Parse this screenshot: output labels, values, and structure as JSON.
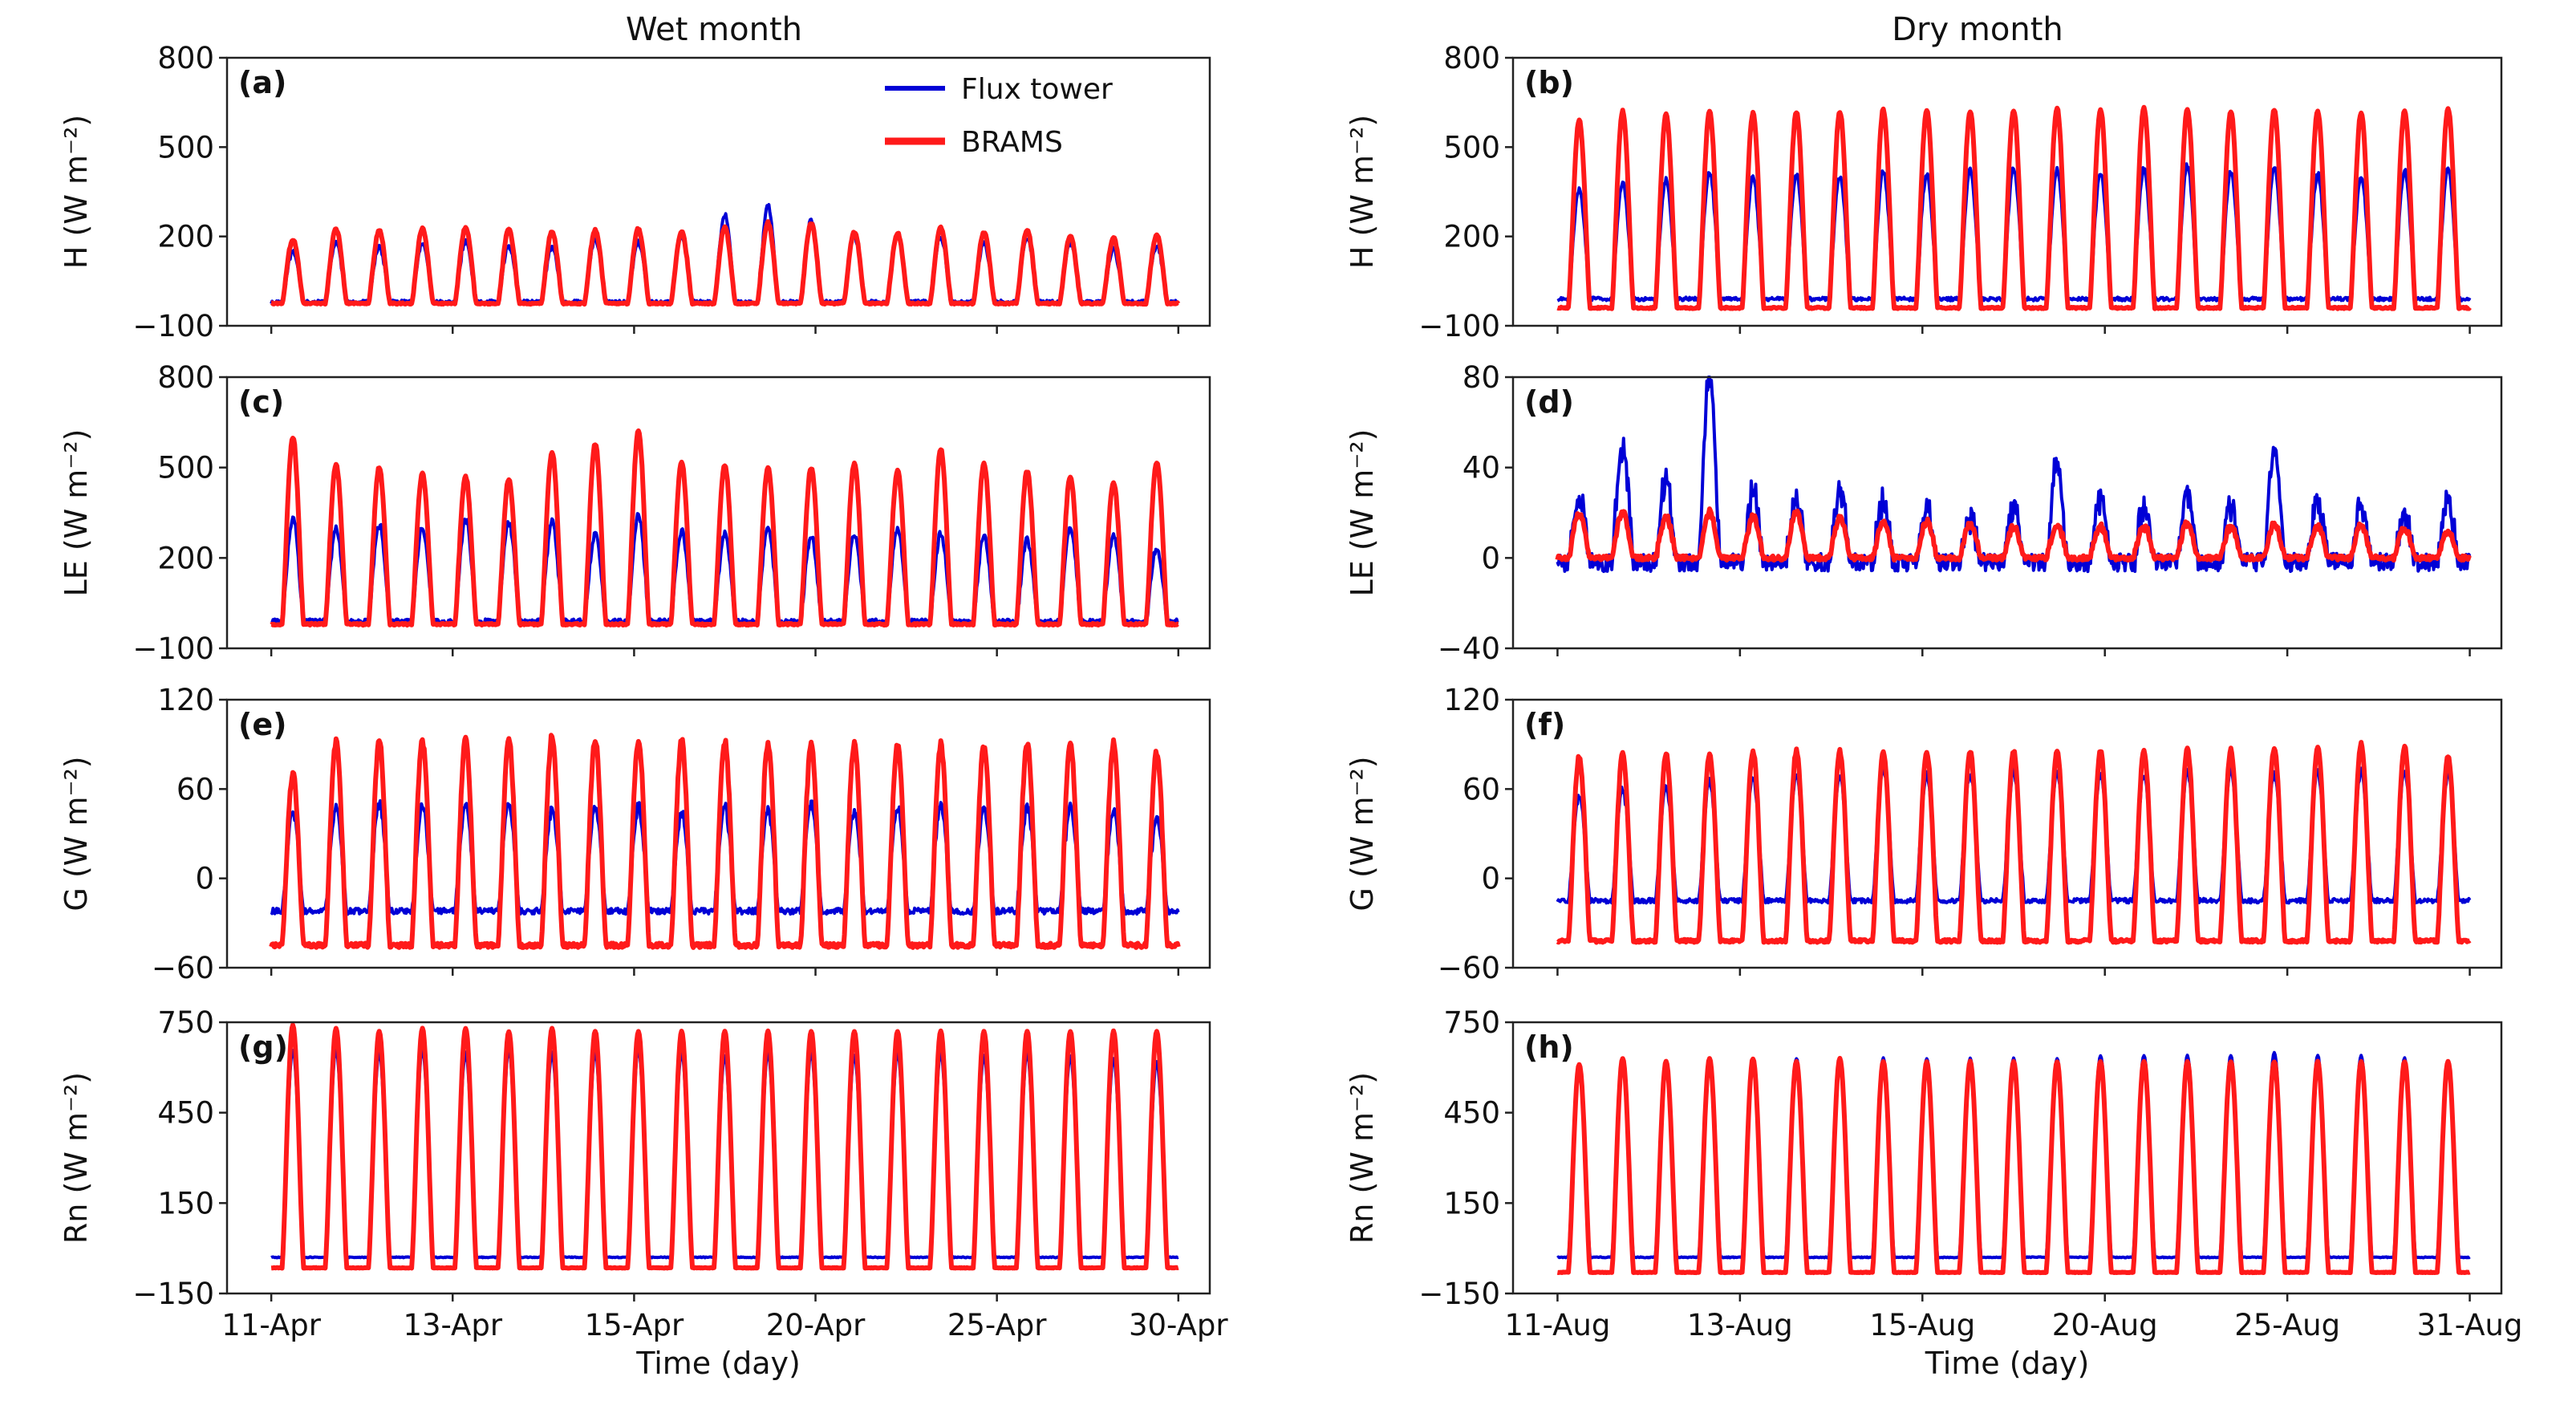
{
  "colors": {
    "flux_tower": "#0000d6",
    "brams": "#ff1a1a",
    "axes": "#222222"
  },
  "layout_titles": {
    "left": "Wet month",
    "right": "Dry month"
  },
  "legend": {
    "series": [
      "Flux tower",
      "BRAMS"
    ]
  },
  "chart_data": [
    {
      "id": "a",
      "type": "line",
      "panel_label": "(a)",
      "column": "Wet month",
      "ylabel": "H (W m⁻²)",
      "ylabel_base": "H",
      "ylim": [
        -100,
        800
      ],
      "yticks": [
        "800",
        "500",
        "200",
        "−100"
      ],
      "xticks": [
        "11-Apr",
        "13-Apr",
        "15-Apr",
        "20-Apr",
        "25-Apr",
        "30-Apr"
      ],
      "xlabel": "",
      "series": [
        {
          "name": "Flux tower",
          "n_days": 21,
          "day_peak": [
            150,
            180,
            165,
            180,
            185,
            170,
            165,
            190,
            180,
            200,
            270,
            300,
            260,
            200,
            210,
            200,
            175,
            195,
            180,
            160,
            170
          ],
          "night_base": -20,
          "night_noise": 12
        },
        {
          "name": "BRAMS",
          "n_days": 21,
          "day_peak": [
            190,
            225,
            220,
            225,
            230,
            225,
            215,
            220,
            225,
            215,
            230,
            245,
            245,
            215,
            210,
            230,
            215,
            220,
            200,
            195,
            205
          ],
          "night_base": -25,
          "night_noise": 5
        }
      ]
    },
    {
      "id": "b",
      "type": "line",
      "panel_label": "(b)",
      "column": "Dry month",
      "ylabel": "H (W m⁻²)",
      "ylabel_base": "H",
      "ylim": [
        -100,
        800
      ],
      "yticks": [
        "800",
        "500",
        "200",
        "−100"
      ],
      "xticks": [
        "11-Aug",
        "13-Aug",
        "15-Aug",
        "20-Aug",
        "25-Aug",
        "31-Aug"
      ],
      "xlabel": "",
      "series": [
        {
          "name": "Flux tower",
          "n_days": 21,
          "day_peak": [
            360,
            380,
            390,
            420,
            400,
            410,
            400,
            420,
            410,
            420,
            430,
            420,
            410,
            430,
            440,
            420,
            430,
            410,
            400,
            420,
            430
          ],
          "night_base": -10,
          "night_noise": 12
        },
        {
          "name": "BRAMS",
          "n_days": 21,
          "day_peak": [
            590,
            620,
            610,
            620,
            615,
            620,
            620,
            625,
            625,
            620,
            625,
            630,
            625,
            630,
            625,
            620,
            625,
            620,
            615,
            620,
            630
          ],
          "night_base": -40,
          "night_noise": 5
        }
      ]
    },
    {
      "id": "c",
      "type": "line",
      "panel_label": "(c)",
      "column": "Wet month",
      "ylabel": "LE (W m⁻²)",
      "ylabel_base": "LE",
      "ylim": [
        -100,
        800
      ],
      "yticks": [
        "800",
        "500",
        "200",
        "−100"
      ],
      "xticks": [
        "11-Apr",
        "13-Apr",
        "15-Apr",
        "20-Apr",
        "25-Apr",
        "30-Apr"
      ],
      "xlabel": "",
      "series": [
        {
          "name": "Flux tower",
          "n_days": 21,
          "day_peak": [
            330,
            300,
            310,
            300,
            330,
            320,
            320,
            280,
            340,
            290,
            280,
            300,
            270,
            280,
            300,
            280,
            270,
            260,
            300,
            280,
            230
          ],
          "night_base": -10,
          "night_noise": 15
        },
        {
          "name": "BRAMS",
          "n_days": 21,
          "day_peak": [
            600,
            510,
            500,
            480,
            470,
            460,
            550,
            580,
            620,
            520,
            510,
            500,
            500,
            510,
            490,
            560,
            510,
            490,
            470,
            450,
            520
          ],
          "night_base": -20,
          "night_noise": 6
        }
      ]
    },
    {
      "id": "d",
      "type": "line",
      "panel_label": "(d)",
      "column": "Dry month",
      "ylabel": "LE (W m⁻²)",
      "ylabel_base": "LE",
      "ylim": [
        -40,
        80
      ],
      "yticks": [
        "80",
        "40",
        "0",
        "−40"
      ],
      "xticks": [
        "11-Aug",
        "13-Aug",
        "15-Aug",
        "20-Aug",
        "25-Aug",
        "31-Aug"
      ],
      "xlabel": "",
      "series": [
        {
          "name": "Flux tower",
          "n_days": 21,
          "day_peak": [
            28,
            50,
            35,
            80,
            30,
            28,
            32,
            25,
            22,
            18,
            20,
            42,
            25,
            22,
            30,
            24,
            48,
            26,
            22,
            20,
            25
          ],
          "night_base": -2,
          "night_noise": 8
        },
        {
          "name": "BRAMS",
          "n_days": 21,
          "day_peak": [
            20,
            20,
            18,
            20,
            18,
            20,
            18,
            16,
            16,
            15,
            14,
            15,
            14,
            14,
            15,
            14,
            15,
            14,
            14,
            13,
            12
          ],
          "night_base": 0,
          "night_noise": 2
        }
      ]
    },
    {
      "id": "e",
      "type": "line",
      "panel_label": "(e)",
      "column": "Wet month",
      "ylabel": "G (W m⁻²)",
      "ylabel_base": "G",
      "ylim": [
        -60,
        120
      ],
      "yticks": [
        "120",
        "60",
        "0",
        "−60"
      ],
      "xticks": [
        "11-Apr",
        "13-Apr",
        "15-Apr",
        "20-Apr",
        "25-Apr",
        "30-Apr"
      ],
      "xlabel": "",
      "series": [
        {
          "name": "Flux tower",
          "n_days": 21,
          "day_peak": [
            45,
            48,
            50,
            48,
            50,
            50,
            46,
            48,
            48,
            45,
            48,
            46,
            50,
            46,
            48,
            50,
            46,
            48,
            48,
            45,
            40
          ],
          "night_base": -22,
          "night_noise": 4
        },
        {
          "name": "BRAMS",
          "n_days": 21,
          "day_peak": [
            70,
            92,
            92,
            93,
            93,
            93,
            95,
            93,
            93,
            92,
            92,
            90,
            90,
            90,
            90,
            90,
            90,
            90,
            90,
            90,
            85
          ],
          "night_base": -45,
          "night_noise": 3
        }
      ]
    },
    {
      "id": "f",
      "type": "line",
      "panel_label": "(f)",
      "column": "Dry month",
      "ylabel": "G (W m⁻²)",
      "ylabel_base": "G",
      "ylim": [
        -60,
        120
      ],
      "yticks": [
        "120",
        "60",
        "0",
        "−60"
      ],
      "xticks": [
        "11-Aug",
        "13-Aug",
        "15-Aug",
        "20-Aug",
        "25-Aug",
        "31-Aug"
      ],
      "xlabel": "",
      "series": [
        {
          "name": "Flux tower",
          "n_days": 21,
          "day_peak": [
            55,
            60,
            62,
            65,
            68,
            68,
            70,
            75,
            70,
            70,
            72,
            72,
            70,
            70,
            72,
            72,
            70,
            72,
            72,
            72,
            70
          ],
          "night_base": -15,
          "night_noise": 3
        },
        {
          "name": "BRAMS",
          "n_days": 21,
          "day_peak": [
            82,
            84,
            84,
            84,
            85,
            85,
            85,
            85,
            85,
            86,
            86,
            86,
            86,
            86,
            87,
            87,
            87,
            88,
            90,
            88,
            82
          ],
          "night_base": -42,
          "night_noise": 2
        }
      ]
    },
    {
      "id": "g",
      "type": "line",
      "panel_label": "(g)",
      "column": "Wet month",
      "ylabel": "Rn (W m⁻²)",
      "ylabel_base": "Rn",
      "ylim": [
        -150,
        750
      ],
      "yticks": [
        "750",
        "450",
        "150",
        "−150"
      ],
      "xticks": [
        "11-Apr",
        "13-Apr",
        "15-Apr",
        "20-Apr",
        "25-Apr",
        "30-Apr"
      ],
      "xlabel": "Time (day)",
      "series": [
        {
          "name": "Flux tower",
          "n_days": 21,
          "day_peak": [
            660,
            660,
            650,
            660,
            650,
            660,
            650,
            650,
            660,
            650,
            640,
            650,
            650,
            640,
            650,
            650,
            640,
            650,
            640,
            630,
            620
          ],
          "night_base": -30,
          "night_noise": 3
        },
        {
          "name": "BRAMS",
          "n_days": 21,
          "day_peak": [
            740,
            730,
            720,
            730,
            730,
            720,
            730,
            720,
            720,
            720,
            720,
            720,
            720,
            720,
            720,
            720,
            720,
            720,
            720,
            720,
            720
          ],
          "night_base": -65,
          "night_noise": 2
        }
      ]
    },
    {
      "id": "h",
      "type": "line",
      "panel_label": "(h)",
      "column": "Dry month",
      "ylabel": "Rn (W m⁻²)",
      "ylabel_base": "Rn",
      "ylim": [
        -150,
        750
      ],
      "yticks": [
        "750",
        "450",
        "150",
        "−150"
      ],
      "xticks": [
        "11-Aug",
        "13-Aug",
        "15-Aug",
        "20-Aug",
        "25-Aug",
        "31-Aug"
      ],
      "xlabel": "Time (day)",
      "series": [
        {
          "name": "Flux tower",
          "n_days": 21,
          "day_peak": [
            600,
            620,
            620,
            620,
            620,
            630,
            630,
            630,
            630,
            630,
            630,
            630,
            640,
            640,
            640,
            640,
            650,
            640,
            640,
            630,
            600
          ],
          "night_base": -30,
          "night_noise": 3
        },
        {
          "name": "BRAMS",
          "n_days": 21,
          "day_peak": [
            610,
            630,
            620,
            630,
            630,
            620,
            630,
            620,
            620,
            620,
            620,
            620,
            620,
            620,
            620,
            620,
            620,
            620,
            620,
            620,
            620
          ],
          "night_base": -80,
          "night_noise": 2
        }
      ]
    }
  ]
}
